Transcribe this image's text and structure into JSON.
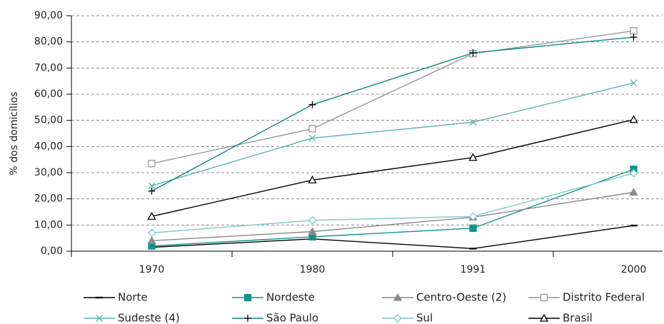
{
  "chart_data": {
    "type": "line",
    "y_label": "% dos domicílios",
    "categories": [
      "1970",
      "1980",
      "1991",
      "2000"
    ],
    "ylim": [
      0,
      90
    ],
    "yticks": [
      {
        "value": 0,
        "label": "0,00"
      },
      {
        "value": 10,
        "label": "10,00"
      },
      {
        "value": 20,
        "label": "20,00"
      },
      {
        "value": 30,
        "label": "30,00"
      },
      {
        "value": 40,
        "label": "40,00"
      },
      {
        "value": 50,
        "label": "50,00"
      },
      {
        "value": 60,
        "label": "60,00"
      },
      {
        "value": 70,
        "label": "70,00"
      },
      {
        "value": 80,
        "label": "80,00"
      },
      {
        "value": 90,
        "label": "90,00"
      }
    ],
    "grid": true,
    "legend": "bottom",
    "series": [
      {
        "name": "Norte",
        "color": "#000000",
        "marker": "dash",
        "values": [
          1.5,
          4.7,
          1.0,
          9.8
        ]
      },
      {
        "name": "Nordeste",
        "color": "#13938a",
        "marker": "square",
        "values": [
          2.0,
          5.5,
          8.8,
          31.3
        ]
      },
      {
        "name": "Centro-Oeste (2)",
        "color": "#8a8a8a",
        "marker": "triangle",
        "values": [
          4.0,
          7.5,
          13.0,
          22.5
        ]
      },
      {
        "name": "Distrito Federal",
        "color": "#999999",
        "marker": "square-open",
        "values": [
          33.5,
          46.8,
          75.5,
          84.2
        ]
      },
      {
        "name": "Sudeste (4)",
        "color": "#5ab5ae",
        "marker": "x",
        "values": [
          25.0,
          43.2,
          49.3,
          64.3
        ]
      },
      {
        "name": "São Paulo",
        "color": "#13877d",
        "marker": "plus",
        "values": [
          23.0,
          56.0,
          75.8,
          81.8
        ]
      },
      {
        "name": "Sul",
        "color": "#7ccac4",
        "marker": "diamond-open",
        "values": [
          7.0,
          11.8,
          13.3,
          29.8
        ]
      },
      {
        "name": "Brasil",
        "color": "#000000",
        "marker": "triangle-open",
        "values": [
          13.3,
          27.2,
          35.8,
          50.3
        ]
      }
    ]
  }
}
